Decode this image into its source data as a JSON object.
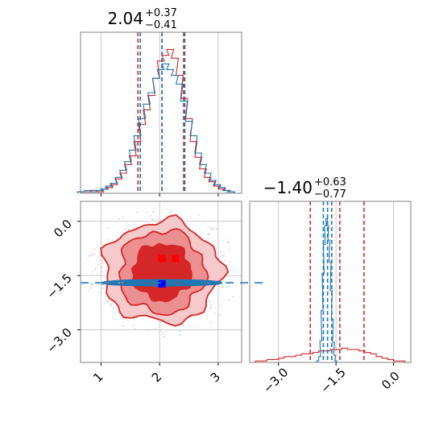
{
  "colors": {
    "red": "#d62728",
    "red_mid": "#ec8f90",
    "red_light": "#f6c9ca",
    "blue": "#1f77b4",
    "blue_light": "#9ec7e3",
    "grid": "#c8c8c8",
    "frame": "#808080"
  },
  "chart_data": [
    {
      "type": "histogram",
      "panel": "top-left",
      "parameter_index": 0,
      "title": {
        "median": "2.04",
        "upper": "+0.37",
        "lower": "−0.41"
      },
      "xlim": [
        0.65,
        3.4
      ],
      "xticks": [
        1,
        2,
        3
      ],
      "show_tick_labels": false,
      "grid": true,
      "series": [
        {
          "color": "red",
          "histtype": "step",
          "quantiles": [
            1.63,
            2.04,
            2.41
          ],
          "bins": [
            [
              0.6,
              0.01
            ],
            [
              0.72,
              0.01
            ],
            [
              0.82,
              0.02
            ],
            [
              0.92,
              0.01
            ],
            [
              1.0,
              0.03
            ],
            [
              1.08,
              0.04
            ],
            [
              1.16,
              0.06
            ],
            [
              1.24,
              0.1
            ],
            [
              1.32,
              0.14
            ],
            [
              1.4,
              0.2
            ],
            [
              1.48,
              0.26
            ],
            [
              1.56,
              0.36
            ],
            [
              1.64,
              0.48
            ],
            [
              1.72,
              0.58
            ],
            [
              1.8,
              0.68
            ],
            [
              1.88,
              0.8
            ],
            [
              1.96,
              0.92
            ],
            [
              2.04,
              0.96
            ],
            [
              2.12,
              1.0
            ],
            [
              2.2,
              0.94
            ],
            [
              2.28,
              0.82
            ],
            [
              2.36,
              0.66
            ],
            [
              2.44,
              0.52
            ],
            [
              2.52,
              0.36
            ],
            [
              2.6,
              0.25
            ],
            [
              2.68,
              0.17
            ],
            [
              2.76,
              0.11
            ],
            [
              2.84,
              0.08
            ],
            [
              2.92,
              0.05
            ],
            [
              3.0,
              0.03
            ],
            [
              3.08,
              0.02
            ],
            [
              3.16,
              0.01
            ]
          ]
        },
        {
          "color": "blue",
          "histtype": "step",
          "quantiles": [
            1.67,
            2.04,
            2.43
          ],
          "bins": [
            [
              0.6,
              0.01
            ],
            [
              0.72,
              0.02
            ],
            [
              0.82,
              0.01
            ],
            [
              0.92,
              0.02
            ],
            [
              1.0,
              0.03
            ],
            [
              1.08,
              0.05
            ],
            [
              1.16,
              0.07
            ],
            [
              1.24,
              0.11
            ],
            [
              1.32,
              0.16
            ],
            [
              1.4,
              0.22
            ],
            [
              1.48,
              0.3
            ],
            [
              1.56,
              0.4
            ],
            [
              1.64,
              0.52
            ],
            [
              1.72,
              0.62
            ],
            [
              1.8,
              0.7
            ],
            [
              1.88,
              0.8
            ],
            [
              1.96,
              0.86
            ],
            [
              2.04,
              0.9
            ],
            [
              2.12,
              0.86
            ],
            [
              2.2,
              0.82
            ],
            [
              2.28,
              0.76
            ],
            [
              2.36,
              0.64
            ],
            [
              2.44,
              0.5
            ],
            [
              2.52,
              0.4
            ],
            [
              2.6,
              0.28
            ],
            [
              2.68,
              0.2
            ],
            [
              2.76,
              0.14
            ],
            [
              2.84,
              0.09
            ],
            [
              2.92,
              0.06
            ],
            [
              3.0,
              0.04
            ],
            [
              3.08,
              0.02
            ],
            [
              3.16,
              0.01
            ]
          ]
        }
      ]
    },
    {
      "type": "contour",
      "panel": "bottom-left",
      "xlim": [
        0.65,
        3.4
      ],
      "ylim": [
        -3.9,
        0.55
      ],
      "xticks": [
        1,
        2,
        3
      ],
      "xticklabels": [
        "1",
        "2",
        "3"
      ],
      "yticks": [
        0.0,
        -1.5,
        -3.0
      ],
      "yticklabels": [
        "0.0",
        "−1.5",
        "−3.0"
      ],
      "grid": true,
      "series": [
        {
          "color": "red",
          "center": [
            2.04,
            -1.4
          ],
          "levels_radii": [
            [
              1.0,
              1.4
            ],
            [
              0.73,
              1.14
            ],
            [
              0.5,
              0.78
            ]
          ],
          "markers": [
            [
              2.04,
              -1.03
            ],
            [
              2.27,
              -1.03
            ]
          ]
        },
        {
          "color": "blue",
          "center": [
            2.04,
            -1.7
          ],
          "levels_radii": [
            [
              1.02,
              0.08
            ],
            [
              0.9,
              0.05
            ],
            [
              0.65,
              0.03
            ]
          ],
          "markers": [
            [
              2.04,
              -1.73
            ]
          ]
        }
      ]
    },
    {
      "type": "histogram",
      "panel": "bottom-right",
      "parameter_index": 1,
      "title": {
        "median": "−1.40",
        "upper": "+0.63",
        "lower": "−0.77"
      },
      "xlim": [
        -3.75,
        0.45
      ],
      "xticks": [
        -3.0,
        -1.5,
        0.0
      ],
      "xticklabels": [
        "−3.0",
        "−1.5",
        "0.0"
      ],
      "grid": true,
      "series": [
        {
          "color": "red",
          "histtype": "step",
          "quantiles": [
            -2.17,
            -1.4,
            -0.77
          ],
          "bins": [
            [
              -3.6,
              0.01
            ],
            [
              -3.45,
              0.01
            ],
            [
              -3.3,
              0.02
            ],
            [
              -3.15,
              0.02
            ],
            [
              -3.0,
              0.03
            ],
            [
              -2.85,
              0.04
            ],
            [
              -2.7,
              0.04
            ],
            [
              -2.55,
              0.05
            ],
            [
              -2.4,
              0.06
            ],
            [
              -2.25,
              0.06
            ],
            [
              -2.1,
              0.07
            ],
            [
              -1.95,
              0.08
            ],
            [
              -1.8,
              0.08
            ],
            [
              -1.65,
              0.09
            ],
            [
              -1.5,
              0.09
            ],
            [
              -1.35,
              0.1
            ],
            [
              -1.2,
              0.09
            ],
            [
              -1.05,
              0.09
            ],
            [
              -0.9,
              0.08
            ],
            [
              -0.75,
              0.07
            ],
            [
              -0.6,
              0.06
            ],
            [
              -0.45,
              0.04
            ],
            [
              -0.3,
              0.03
            ],
            [
              -0.15,
              0.02
            ],
            [
              0.0,
              0.01
            ],
            [
              0.15,
              0.01
            ]
          ]
        },
        {
          "color": "blue",
          "histtype": "step",
          "quantiles": [
            -1.83,
            -1.72,
            -1.61
          ],
          "bins": [
            [
              -2.0,
              0.01
            ],
            [
              -1.95,
              0.04
            ],
            [
              -1.92,
              0.15
            ],
            [
              -1.89,
              0.36
            ],
            [
              -1.86,
              0.62
            ],
            [
              -1.83,
              0.82
            ],
            [
              -1.8,
              0.95
            ],
            [
              -1.77,
              1.0
            ],
            [
              -1.74,
              0.95
            ],
            [
              -1.71,
              0.85
            ],
            [
              -1.68,
              0.7
            ],
            [
              -1.65,
              0.5
            ],
            [
              -1.62,
              0.3
            ],
            [
              -1.59,
              0.14
            ],
            [
              -1.56,
              0.05
            ],
            [
              -1.53,
              0.01
            ]
          ]
        }
      ]
    }
  ]
}
